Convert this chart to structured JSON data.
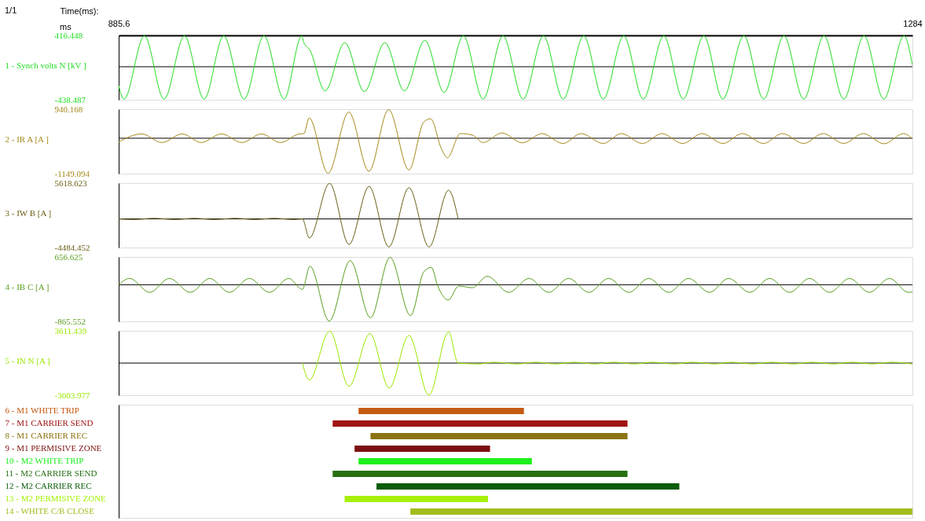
{
  "chart_data": [
    {
      "type": "line",
      "xlabel": "Time(ms):",
      "ylabel": "1 - Synch volts N [kV ]",
      "annotations": [
        "1/1",
        "ms"
      ],
      "xlim": [
        885.6,
        1284
      ],
      "xticks": [
        885.6,
        1284
      ],
      "ylim": [
        -438.487,
        416.448
      ],
      "yticks": [
        416.448,
        -438.487
      ],
      "ref_lines": [
        {
          "axis": "y",
          "value": 0,
          "color": "#000000"
        }
      ],
      "x": [
        885.6,
        888.3,
        898.5,
        908.4,
        918.6,
        928.5,
        938.3,
        948.6,
        958.5,
        968.6,
        977.5,
        978.4,
        981.6,
        989.2,
        999.1,
        1008.9,
        1019.2,
        1029.0,
        1039.3,
        1049.0,
        1058.6,
        1068.5,
        1078.5,
        1088.6,
        1098.8,
        1108.7,
        1119.0,
        1128.8,
        1139.1,
        1148.9,
        1159.2,
        1168.9,
        1179.3,
        1188.8,
        1199.4,
        1209.3,
        1219.5,
        1229.4,
        1239.6,
        1249.5,
        1259.7,
        1269.6,
        1279.8,
        1284
      ],
      "series": [
        {
          "color": "#22dd22",
          "values": [
            -250,
            -430,
            410,
            -430,
            410,
            -430,
            410,
            -430,
            410,
            -430,
            410,
            330,
            220,
            -320,
            320,
            -330,
            320,
            -320,
            350,
            -340,
            410,
            -430,
            410,
            -430,
            410,
            -430,
            410,
            -430,
            410,
            -430,
            410,
            -430,
            410,
            -430,
            410,
            -430,
            410,
            -430,
            410,
            -430,
            410,
            -430,
            410,
            20
          ]
        }
      ]
    },
    {
      "type": "line",
      "ylabel": "2 - IR A [A ]",
      "tick_labels": "y",
      "xlim": [
        885.6,
        1284
      ],
      "ylim": [
        -1149.094,
        940.168
      ],
      "yticks": [
        940.168,
        -1149.094
      ],
      "ref_lines": [
        {
          "axis": "y",
          "value": 0,
          "color": "#000000"
        }
      ],
      "x": [
        885.6,
        897.2,
        907.2,
        917.5,
        927.0,
        937.2,
        947.4,
        957.3,
        966.8,
        976.3,
        978.6,
        981.2,
        990.7,
        1001.1,
        1011.2,
        1021.1,
        1031.3,
        1038.8,
        1042.2,
        1047.6,
        1050.6,
        1057.1,
        1063.2,
        1068.5,
        1078.0,
        1088.2,
        1098.1,
        1108.6,
        1117.7,
        1128.8,
        1137.9,
        1148.5,
        1158.3,
        1168.7,
        1178.4,
        1188.9,
        1198.6,
        1209.3,
        1218.7,
        1229.4,
        1239.1,
        1249.5,
        1259.3,
        1269.8,
        1279.5,
        1284
      ],
      "series": [
        {
          "color": "#a58a1c",
          "values": [
            -120,
            140,
            -140,
            140,
            -140,
            140,
            -140,
            140,
            -140,
            140,
            150,
            660,
            -1140,
            850,
            -1070,
            930,
            -1030,
            530,
            630,
            -340,
            -630,
            150,
            100,
            -140,
            170,
            -150,
            150,
            -170,
            150,
            -170,
            150,
            -170,
            150,
            -170,
            150,
            -170,
            150,
            -170,
            150,
            -170,
            150,
            -170,
            150,
            -180,
            150,
            -20
          ]
        }
      ]
    },
    {
      "type": "line",
      "ylabel": "3 - IW B [A ]",
      "tick_labels": "y",
      "xlim": [
        885.6,
        1284
      ],
      "ylim": [
        -4484.452,
        5618.623
      ],
      "yticks": [
        5618.623,
        -4484.452
      ],
      "ref_lines": [
        {
          "axis": "y",
          "value": 0,
          "color": "#000000"
        }
      ],
      "x": [
        885.6,
        893.2,
        903.3,
        914.1,
        923.5,
        933.8,
        944.0,
        954.1,
        963.6,
        973.6,
        977.8,
        981.3,
        991.5,
        1001.2,
        1011.3,
        1021.2,
        1031.3,
        1041.4,
        1051.2,
        1056.0
      ],
      "series": [
        {
          "color": "#6b5f16",
          "values": [
            0,
            -100,
            100,
            -100,
            100,
            -100,
            100,
            -100,
            100,
            -100,
            0,
            -3000,
            5600,
            -4000,
            5100,
            -4400,
            4900,
            -4400,
            4500,
            0
          ]
        }
      ]
    },
    {
      "type": "line",
      "ylabel": "4 - IB C [A ]",
      "tick_labels": "y",
      "xlim": [
        885.6,
        1284
      ],
      "ylim": [
        -865.552,
        656.625
      ],
      "yticks": [
        656.625,
        -865.552
      ],
      "ref_lines": [
        {
          "axis": "y",
          "value": 0,
          "color": "#000000"
        }
      ],
      "x": [
        885.6,
        891.1,
        901.2,
        911.0,
        921.6,
        931.3,
        941.2,
        951.2,
        961.3,
        971.0,
        977.8,
        981.6,
        991.3,
        1001.8,
        1012.0,
        1021.8,
        1032.1,
        1038.8,
        1042.6,
        1045.6,
        1051.0,
        1056.3,
        1063.2,
        1070.6,
        1081.4,
        1091.6,
        1101.4,
        1111.5,
        1121.6,
        1131.5,
        1141.7,
        1151.6,
        1161.7,
        1171.6,
        1182.2,
        1191.7,
        1202.4,
        1212.3,
        1222.4,
        1232.3,
        1242.5,
        1252.4,
        1262.4,
        1272.5,
        1282.0,
        1284
      ],
      "series": [
        {
          "color": "#5a9e1e",
          "values": [
            0,
            150,
            -180,
            150,
            -180,
            150,
            -180,
            150,
            -180,
            150,
            -110,
            440,
            -860,
            570,
            -780,
            650,
            -730,
            310,
            410,
            -10,
            -360,
            -30,
            -70,
            200,
            -180,
            150,
            -180,
            150,
            -180,
            150,
            -180,
            150,
            -180,
            150,
            -180,
            150,
            -180,
            150,
            -180,
            150,
            -180,
            150,
            -180,
            150,
            -180,
            -170
          ]
        }
      ]
    },
    {
      "type": "line",
      "ylabel": "5 - IN N [A ]",
      "tick_labels": "y",
      "xlim": [
        885.6,
        1284
      ],
      "ylim": [
        -3603.977,
        3611.439
      ],
      "yticks": [
        3611.439,
        -3603.977
      ],
      "ref_lines": [
        {
          "axis": "y",
          "value": 0,
          "color": "#000000"
        }
      ],
      "x": [
        977.8,
        981.3,
        991.5,
        1001.2,
        1011.7,
        1021.4,
        1031.3,
        1041.3,
        1051.2,
        1056.0,
        1066.4,
        1073.9,
        1085.4,
        1094.9,
        1104.9,
        1114.4,
        1124.6,
        1134.0,
        1144.2,
        1153.5,
        1164.3,
        1173.6,
        1184.6,
        1193.3,
        1203.9,
        1213.4,
        1224.3,
        1233.7,
        1244.5,
        1253.9,
        1264.0,
        1273.4,
        1284
      ],
      "series": [
        {
          "color": "#9ae800",
          "values": [
            0,
            -1900,
            3600,
            -2600,
            3300,
            -2800,
            3100,
            -3600,
            3500,
            0,
            -100,
            100,
            -100,
            100,
            -100,
            100,
            -100,
            100,
            -100,
            100,
            -100,
            100,
            -100,
            100,
            -100,
            100,
            -100,
            100,
            -100,
            100,
            -100,
            100,
            -100
          ]
        }
      ]
    },
    {
      "type": "bar",
      "orientation": "horizontal",
      "tick_labels": "y",
      "xlim": [
        885.6,
        1284
      ],
      "categories": [
        "6 - M1 WHITE TRIP",
        "7 - M1 CARRIER SEND",
        "8 - M1 CARRIER REC",
        "9 - M1 PERMISIVE ZONE",
        "10 - M2 WHITE TRIP",
        "11 - M2 CARRIER SEND",
        "12 - M2 CARRIER REC",
        "13 - M2 PERMISIVE ZONE",
        "14 - WHITE C/B CLOSE"
      ],
      "base": [
        1006,
        993,
        1012,
        1004,
        1006,
        993,
        1015,
        999,
        1032
      ],
      "values": [
        83,
        148,
        129,
        68,
        87,
        148,
        152,
        72,
        252
      ],
      "colors": [
        "#c55a11",
        "#a01414",
        "#8c7414",
        "#7d1010",
        "#1ef01e",
        "#267012",
        "#0b5c0b",
        "#a6f00c",
        "#a3bd1e"
      ]
    }
  ]
}
